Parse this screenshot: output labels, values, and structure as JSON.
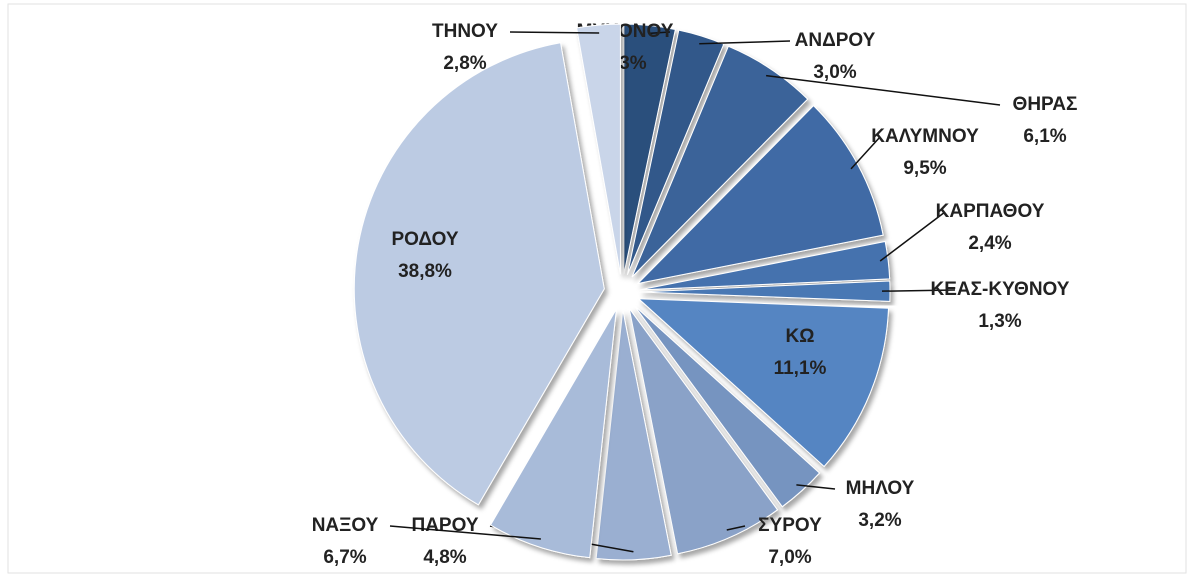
{
  "chart_data": {
    "type": "pie",
    "categories": [
      "ΜΥΚΟΝΟΥ",
      "ΑΝΔΡΟΥ",
      "ΘΗΡΑΣ",
      "ΚΑΛΥΜΝΟΥ",
      "ΚΑΡΠΑΘΟΥ",
      "ΚΕΑΣ-ΚΥΘΝΟΥ",
      "ΚΩ",
      "ΜΗΛΟΥ",
      "ΣΥΡΟΥ",
      "ΠΑΡΟΥ",
      "ΝΑΞΟΥ",
      "ΡΟΔΟΥ",
      "ΤΗΝΟΥ"
    ],
    "values": [
      3.3,
      3.0,
      6.1,
      9.5,
      2.4,
      1.3,
      11.1,
      3.2,
      7.0,
      4.8,
      6.7,
      38.8,
      2.8
    ],
    "value_labels": [
      "3,3%",
      "3,0%",
      "6,1%",
      "9,5%",
      "2,4%",
      "1,3%",
      "11,1%",
      "3,2%",
      "7,0%",
      "4,8%",
      "6,7%",
      "38,8%",
      "2,8%"
    ],
    "colors": [
      "#2c4f7c",
      "#33598a",
      "#3a6399",
      "#3f6ba5",
      "#4572ae",
      "#4a78b4",
      "#5585c2",
      "#7694c0",
      "#8aa2c8",
      "#9aafd1",
      "#a8bbd9",
      "#bccbe3",
      "#c9d5e9"
    ]
  }
}
